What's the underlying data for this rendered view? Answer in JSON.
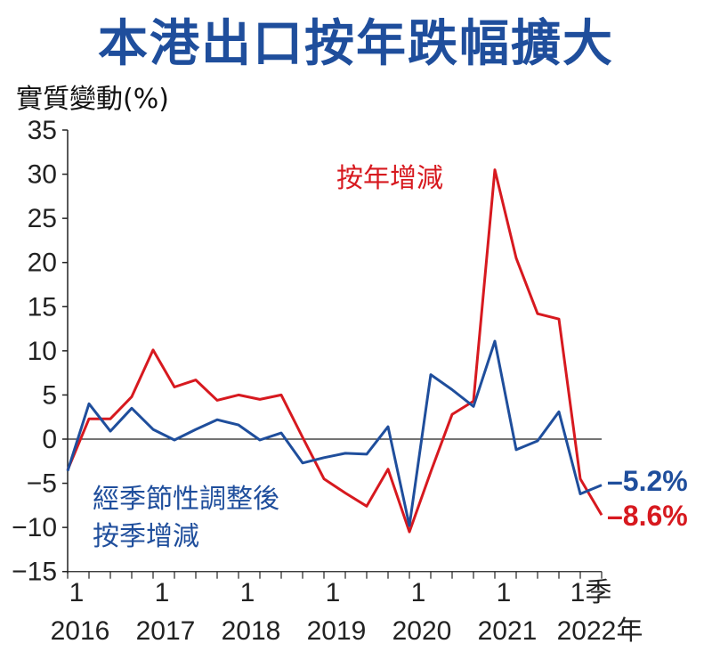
{
  "chart_data": {
    "type": "line",
    "title": "本港出口按年跌幅擴大",
    "ylabel": "實質變動(%)",
    "xlabel": "",
    "ylim": [
      -15,
      35
    ],
    "yticks": [
      35,
      30,
      25,
      20,
      15,
      10,
      5,
      0,
      -5,
      -10,
      -15
    ],
    "x_tick_labels": [
      {
        "quarter": "1",
        "year": "2016",
        "index": 0
      },
      {
        "quarter": "1",
        "year": "2017",
        "index": 4
      },
      {
        "quarter": "1",
        "year": "2018",
        "index": 8
      },
      {
        "quarter": "1",
        "year": "2019",
        "index": 12
      },
      {
        "quarter": "1",
        "year": "2020",
        "index": 16
      },
      {
        "quarter": "1",
        "year": "2021",
        "index": 20
      },
      {
        "quarter": "1季",
        "year": "2022年",
        "index": 24
      }
    ],
    "n_points": 26,
    "grid": false,
    "zero_line": true,
    "series": [
      {
        "name": "按年增減",
        "color": "#d7191f",
        "values": [
          -3.5,
          2.3,
          2.3,
          4.8,
          10.1,
          5.9,
          6.7,
          4.4,
          5.0,
          4.5,
          5.0,
          0.2,
          -4.5,
          -6.1,
          -7.6,
          -3.4,
          -10.5,
          -3.7,
          2.8,
          4.3,
          30.5,
          20.5,
          14.2,
          13.6,
          -4.5,
          -8.6
        ],
        "end_label": "–8.6%"
      },
      {
        "name": "經季節性調整後按季增減",
        "name_lines": [
          "經季節性調整後",
          "按季增減"
        ],
        "color": "#1f4e9c",
        "values": [
          -3.6,
          4.0,
          0.9,
          3.5,
          1.1,
          -0.1,
          1.1,
          2.2,
          1.6,
          -0.1,
          0.7,
          -2.7,
          -2.1,
          -1.6,
          -1.7,
          1.4,
          -9.8,
          7.3,
          5.6,
          3.7,
          11.1,
          -1.2,
          -0.2,
          3.1,
          -6.2,
          -5.2
        ],
        "end_label": "–5.2%"
      }
    ]
  }
}
